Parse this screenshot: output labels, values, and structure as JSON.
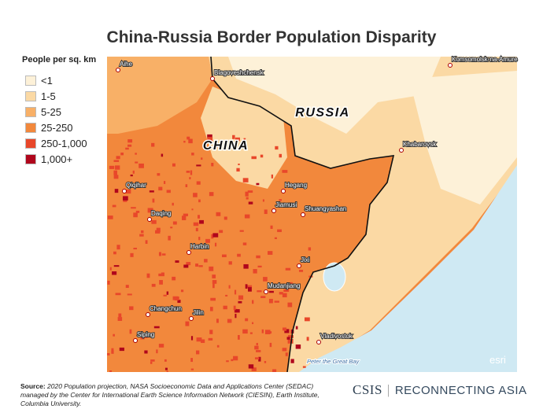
{
  "title": "China-Russia Border Population Disparity",
  "legend": {
    "title": "People per sq. km",
    "items": [
      {
        "label": "<1",
        "color": "#fdf1d8"
      },
      {
        "label": "1-5",
        "color": "#fbd9a4"
      },
      {
        "label": "5-25",
        "color": "#f8b067"
      },
      {
        "label": "25-250",
        "color": "#f2883c"
      },
      {
        "label": "250-1,000",
        "color": "#e8472a"
      },
      {
        "label": "1,000+",
        "color": "#b0061c"
      }
    ]
  },
  "map": {
    "country_labels": [
      "RUSSIA",
      "CHINA"
    ],
    "cities": [
      "Aihe",
      "Blagoveshchensk",
      "Komsomolsk-na-Amure",
      "Khabarovsk",
      "Qiqihar",
      "Hegang",
      "Jiamusi",
      "Shuangyashan",
      "Daqing",
      "Harbin",
      "Jixi",
      "Mudanjiang",
      "Changchun",
      "Jilin",
      "Siping",
      "Vladivostok"
    ],
    "water_label": "Peter the Great Bay",
    "attribution": "esri"
  },
  "source": {
    "lead": "Source:",
    "text": "2020 Population projection, NASA Socioeconomic Data and Applications Center (SEDAC) managed by the Center for International Earth Science Information Network (CIESIN), Earth Institute, Columbia University."
  },
  "logo": {
    "left": "CSIS",
    "right": "RECONNECTING ASIA"
  }
}
